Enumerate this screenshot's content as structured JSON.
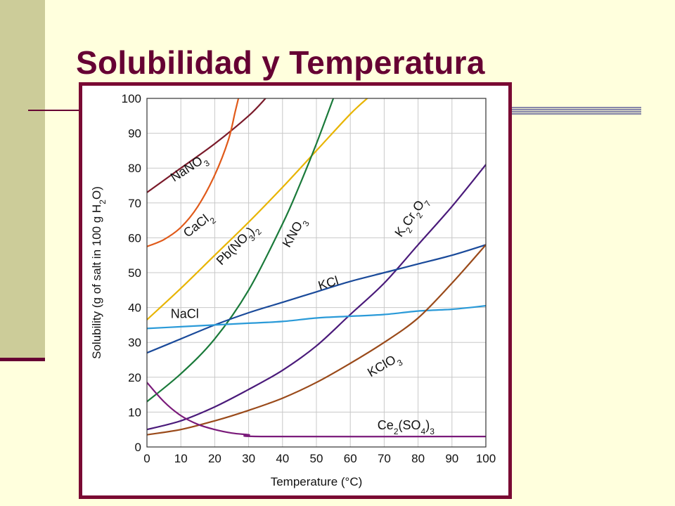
{
  "slide": {
    "title": "Solubilidad y Temperatura"
  },
  "colors": {
    "title": "#660033",
    "background": "#ffffdd",
    "side_band": "#cccc99",
    "frame": "#7a0a33"
  },
  "chart_data": {
    "type": "line",
    "xlabel": "Temperature (°C)",
    "ylabel": "Solubility (g of salt in 100 g H2O)",
    "xlim": [
      0,
      100
    ],
    "ylim": [
      0,
      100
    ],
    "xticks": [
      0,
      10,
      20,
      30,
      40,
      50,
      60,
      70,
      80,
      90,
      100
    ],
    "yticks": [
      0,
      10,
      20,
      30,
      40,
      50,
      60,
      70,
      80,
      90,
      100
    ],
    "grid": true,
    "series": [
      {
        "name": "NaNO3",
        "color": "#7a1a2a",
        "x": [
          0,
          10,
          20,
          30,
          35
        ],
        "y": [
          73,
          80,
          87,
          95,
          100
        ]
      },
      {
        "name": "CaCl2",
        "color": "#e05a1a",
        "x": [
          0,
          5,
          10,
          15,
          20,
          24,
          26,
          27
        ],
        "y": [
          57.5,
          59.5,
          63,
          69,
          78,
          88,
          96,
          100
        ]
      },
      {
        "name": "Pb(NO3)2",
        "color": "#e8b400",
        "x": [
          0,
          10,
          20,
          30,
          40,
          50,
          60,
          65
        ],
        "y": [
          36.5,
          45.5,
          55,
          64.5,
          74.5,
          85,
          95.5,
          100
        ]
      },
      {
        "name": "KNO3",
        "color": "#1a7a3a",
        "x": [
          0,
          10,
          20,
          30,
          40,
          45,
          50,
          55
        ],
        "y": [
          13,
          21,
          31,
          45,
          64,
          75,
          87,
          100
        ]
      },
      {
        "name": "K2Cr2O7",
        "color": "#4a1a7a",
        "x": [
          0,
          10,
          20,
          30,
          40,
          50,
          60,
          70,
          80,
          90,
          100
        ],
        "y": [
          5,
          7.5,
          11.5,
          16.5,
          22,
          29,
          38,
          47,
          58,
          69,
          81
        ]
      },
      {
        "name": "KCl",
        "color": "#1a4a9a",
        "x": [
          0,
          10,
          20,
          30,
          40,
          50,
          60,
          70,
          80,
          90,
          100
        ],
        "y": [
          27,
          31,
          35,
          38.5,
          41.5,
          44.5,
          47.5,
          50,
          52.5,
          55,
          58
        ]
      },
      {
        "name": "NaCl",
        "color": "#2a9ad8",
        "x": [
          0,
          10,
          20,
          30,
          40,
          50,
          60,
          70,
          80,
          90,
          100
        ],
        "y": [
          34,
          34.5,
          35,
          35.5,
          36,
          37,
          37.5,
          38,
          39,
          39.5,
          40.5
        ]
      },
      {
        "name": "KClO3",
        "color": "#9a4a1a",
        "x": [
          0,
          10,
          20,
          30,
          40,
          50,
          60,
          70,
          80,
          90,
          100
        ],
        "y": [
          3.5,
          5,
          7.5,
          10.5,
          14,
          18.5,
          24,
          30,
          37,
          47,
          58
        ]
      },
      {
        "name": "Ce2(SO4)3",
        "color": "#7a1a7a",
        "x": [
          0,
          5,
          10,
          15,
          20,
          25,
          30,
          35,
          100
        ],
        "y": [
          18.5,
          13,
          9,
          6.5,
          5,
          4,
          3.5,
          3,
          3
        ]
      }
    ],
    "annotations": [
      {
        "series": "NaNO3",
        "parts": [
          "NaNO",
          "3"
        ]
      },
      {
        "series": "CaCl2",
        "parts": [
          "CaCl",
          "2"
        ]
      },
      {
        "series": "Pb(NO3)2",
        "parts": [
          "Pb(NO",
          "3",
          ")",
          "2"
        ]
      },
      {
        "series": "KNO3",
        "parts": [
          "KNO",
          "3"
        ]
      },
      {
        "series": "K2Cr2O7",
        "parts": [
          "K",
          "2",
          "Cr",
          "2",
          "O",
          "7"
        ]
      },
      {
        "series": "KCl",
        "parts": [
          "KCl"
        ]
      },
      {
        "series": "NaCl",
        "parts": [
          "NaCl"
        ]
      },
      {
        "series": "KClO3",
        "parts": [
          "KClO",
          "3"
        ]
      },
      {
        "series": "Ce2(SO4)3",
        "parts": [
          "Ce",
          "2",
          "(SO",
          "4",
          ")",
          "3"
        ]
      }
    ],
    "ylabel_parts": [
      "Solubility (g of salt in 100 g H",
      "2",
      "O)"
    ]
  }
}
